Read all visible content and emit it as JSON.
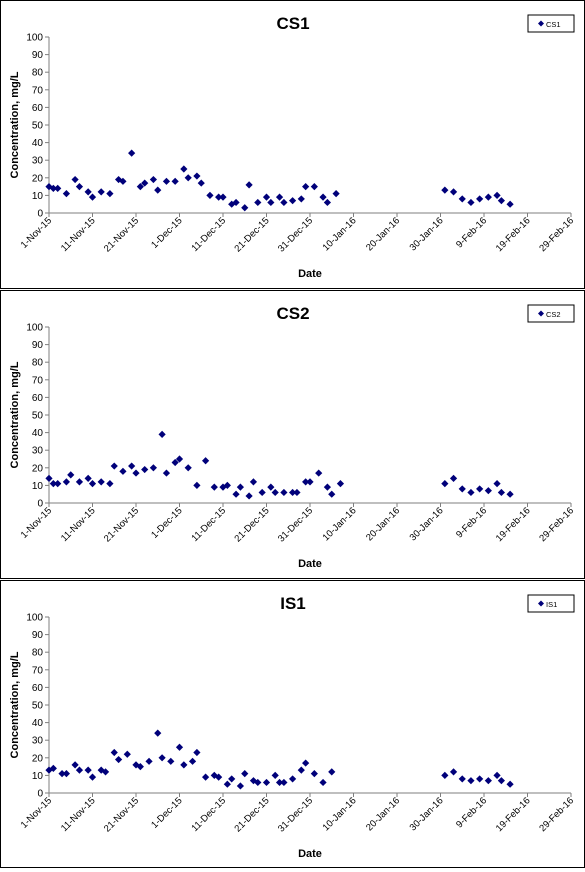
{
  "page": {
    "background": "#ffffff",
    "marker_color": "#00007a",
    "axis_color": "#7f7f7f"
  },
  "chart_data": [
    {
      "type": "scatter",
      "title": "CS1",
      "xlabel": "Date",
      "ylabel": "Concentration, mg/L",
      "ylim": [
        0,
        100
      ],
      "yticks": [
        0,
        10,
        20,
        30,
        40,
        50,
        60,
        70,
        80,
        90,
        100
      ],
      "xlim": [
        "2015-11-01",
        "2016-02-29"
      ],
      "xtick_labels": [
        "1-Nov-15",
        "11-Nov-15",
        "21-Nov-15",
        "1-Dec-15",
        "11-Dec-15",
        "21-Dec-15",
        "31-Dec-15",
        "10-Jan-16",
        "20-Jan-16",
        "30-Jan-16",
        "9-Feb-16",
        "19-Feb-16",
        "29-Feb-16"
      ],
      "grid": false,
      "legend_position": "top-right",
      "series": [
        {
          "name": "CS1",
          "marker": "diamond",
          "color": "#00007a",
          "points": [
            {
              "x": "2015-11-01",
              "y": 15
            },
            {
              "x": "2015-11-02",
              "y": 14
            },
            {
              "x": "2015-11-03",
              "y": 14
            },
            {
              "x": "2015-11-05",
              "y": 11
            },
            {
              "x": "2015-11-07",
              "y": 19
            },
            {
              "x": "2015-11-08",
              "y": 15
            },
            {
              "x": "2015-11-10",
              "y": 12
            },
            {
              "x": "2015-11-11",
              "y": 9
            },
            {
              "x": "2015-11-13",
              "y": 12
            },
            {
              "x": "2015-11-15",
              "y": 11
            },
            {
              "x": "2015-11-17",
              "y": 19
            },
            {
              "x": "2015-11-18",
              "y": 18
            },
            {
              "x": "2015-11-20",
              "y": 34
            },
            {
              "x": "2015-11-22",
              "y": 15
            },
            {
              "x": "2015-11-23",
              "y": 17
            },
            {
              "x": "2015-11-25",
              "y": 19
            },
            {
              "x": "2015-11-26",
              "y": 13
            },
            {
              "x": "2015-11-28",
              "y": 18
            },
            {
              "x": "2015-11-30",
              "y": 18
            },
            {
              "x": "2015-12-02",
              "y": 25
            },
            {
              "x": "2015-12-03",
              "y": 20
            },
            {
              "x": "2015-12-05",
              "y": 21
            },
            {
              "x": "2015-12-06",
              "y": 17
            },
            {
              "x": "2015-12-08",
              "y": 10
            },
            {
              "x": "2015-12-10",
              "y": 9
            },
            {
              "x": "2015-12-11",
              "y": 9
            },
            {
              "x": "2015-12-13",
              "y": 5
            },
            {
              "x": "2015-12-14",
              "y": 6
            },
            {
              "x": "2015-12-16",
              "y": 3
            },
            {
              "x": "2015-12-17",
              "y": 16
            },
            {
              "x": "2015-12-19",
              "y": 6
            },
            {
              "x": "2015-12-21",
              "y": 9
            },
            {
              "x": "2015-12-22",
              "y": 6
            },
            {
              "x": "2015-12-24",
              "y": 9
            },
            {
              "x": "2015-12-25",
              "y": 6
            },
            {
              "x": "2015-12-27",
              "y": 7
            },
            {
              "x": "2015-12-29",
              "y": 8
            },
            {
              "x": "2015-12-30",
              "y": 15
            },
            {
              "x": "2016-01-01",
              "y": 15
            },
            {
              "x": "2016-01-03",
              "y": 9
            },
            {
              "x": "2016-01-04",
              "y": 6
            },
            {
              "x": "2016-01-06",
              "y": 11
            },
            {
              "x": "2016-01-31",
              "y": 13
            },
            {
              "x": "2016-02-02",
              "y": 12
            },
            {
              "x": "2016-02-04",
              "y": 8
            },
            {
              "x": "2016-02-06",
              "y": 6
            },
            {
              "x": "2016-02-08",
              "y": 8
            },
            {
              "x": "2016-02-10",
              "y": 9
            },
            {
              "x": "2016-02-12",
              "y": 10
            },
            {
              "x": "2016-02-13",
              "y": 7
            },
            {
              "x": "2016-02-15",
              "y": 5
            }
          ]
        }
      ]
    },
    {
      "type": "scatter",
      "title": "CS2",
      "xlabel": "Date",
      "ylabel": "Concentration, mg/L",
      "ylim": [
        0,
        100
      ],
      "yticks": [
        0,
        10,
        20,
        30,
        40,
        50,
        60,
        70,
        80,
        90,
        100
      ],
      "xlim": [
        "2015-11-01",
        "2016-02-29"
      ],
      "xtick_labels": [
        "1-Nov-15",
        "11-Nov-15",
        "21-Nov-15",
        "1-Dec-15",
        "11-Dec-15",
        "21-Dec-15",
        "31-Dec-15",
        "10-Jan-16",
        "20-Jan-16",
        "30-Jan-16",
        "9-Feb-16",
        "19-Feb-16",
        "29-Feb-16"
      ],
      "grid": false,
      "legend_position": "top-right",
      "series": [
        {
          "name": "CS2",
          "marker": "diamond",
          "color": "#00007a",
          "points": [
            {
              "x": "2015-11-01",
              "y": 14
            },
            {
              "x": "2015-11-02",
              "y": 11
            },
            {
              "x": "2015-11-03",
              "y": 11
            },
            {
              "x": "2015-11-05",
              "y": 12
            },
            {
              "x": "2015-11-06",
              "y": 16
            },
            {
              "x": "2015-11-08",
              "y": 12
            },
            {
              "x": "2015-11-10",
              "y": 14
            },
            {
              "x": "2015-11-11",
              "y": 11
            },
            {
              "x": "2015-11-13",
              "y": 12
            },
            {
              "x": "2015-11-15",
              "y": 11
            },
            {
              "x": "2015-11-16",
              "y": 21
            },
            {
              "x": "2015-11-18",
              "y": 18
            },
            {
              "x": "2015-11-20",
              "y": 21
            },
            {
              "x": "2015-11-21",
              "y": 17
            },
            {
              "x": "2015-11-23",
              "y": 19
            },
            {
              "x": "2015-11-25",
              "y": 20
            },
            {
              "x": "2015-11-27",
              "y": 39
            },
            {
              "x": "2015-11-28",
              "y": 17
            },
            {
              "x": "2015-11-30",
              "y": 23
            },
            {
              "x": "2015-12-01",
              "y": 25
            },
            {
              "x": "2015-12-03",
              "y": 20
            },
            {
              "x": "2015-12-05",
              "y": 10
            },
            {
              "x": "2015-12-07",
              "y": 24
            },
            {
              "x": "2015-12-09",
              "y": 9
            },
            {
              "x": "2015-12-11",
              "y": 9
            },
            {
              "x": "2015-12-12",
              "y": 10
            },
            {
              "x": "2015-12-14",
              "y": 5
            },
            {
              "x": "2015-12-15",
              "y": 9
            },
            {
              "x": "2015-12-17",
              "y": 4
            },
            {
              "x": "2015-12-18",
              "y": 12
            },
            {
              "x": "2015-12-20",
              "y": 6
            },
            {
              "x": "2015-12-22",
              "y": 9
            },
            {
              "x": "2015-12-23",
              "y": 6
            },
            {
              "x": "2015-12-25",
              "y": 6
            },
            {
              "x": "2015-12-27",
              "y": 6
            },
            {
              "x": "2015-12-28",
              "y": 6
            },
            {
              "x": "2015-12-30",
              "y": 12
            },
            {
              "x": "2015-12-31",
              "y": 12
            },
            {
              "x": "2016-01-02",
              "y": 17
            },
            {
              "x": "2016-01-04",
              "y": 9
            },
            {
              "x": "2016-01-05",
              "y": 5
            },
            {
              "x": "2016-01-07",
              "y": 11
            },
            {
              "x": "2016-01-31",
              "y": 11
            },
            {
              "x": "2016-02-02",
              "y": 14
            },
            {
              "x": "2016-02-04",
              "y": 8
            },
            {
              "x": "2016-02-06",
              "y": 6
            },
            {
              "x": "2016-02-08",
              "y": 8
            },
            {
              "x": "2016-02-10",
              "y": 7
            },
            {
              "x": "2016-02-12",
              "y": 11
            },
            {
              "x": "2016-02-13",
              "y": 6
            },
            {
              "x": "2016-02-15",
              "y": 5
            }
          ]
        }
      ]
    },
    {
      "type": "scatter",
      "title": "IS1",
      "xlabel": "Date",
      "ylabel": "Concentration, mg/L",
      "ylim": [
        0,
        100
      ],
      "yticks": [
        0,
        10,
        20,
        30,
        40,
        50,
        60,
        70,
        80,
        90,
        100
      ],
      "xlim": [
        "2015-11-01",
        "2016-02-29"
      ],
      "xtick_labels": [
        "1-Nov-15",
        "11-Nov-15",
        "21-Nov-15",
        "1-Dec-15",
        "11-Dec-15",
        "21-Dec-15",
        "31-Dec-15",
        "10-Jan-16",
        "20-Jan-16",
        "30-Jan-16",
        "9-Feb-16",
        "19-Feb-16",
        "29-Feb-16"
      ],
      "grid": false,
      "legend_position": "top-right",
      "series": [
        {
          "name": "IS1",
          "marker": "diamond",
          "color": "#00007a",
          "points": [
            {
              "x": "2015-11-01",
              "y": 13
            },
            {
              "x": "2015-11-02",
              "y": 14
            },
            {
              "x": "2015-11-04",
              "y": 11
            },
            {
              "x": "2015-11-05",
              "y": 11
            },
            {
              "x": "2015-11-07",
              "y": 16
            },
            {
              "x": "2015-11-08",
              "y": 13
            },
            {
              "x": "2015-11-10",
              "y": 13
            },
            {
              "x": "2015-11-11",
              "y": 9
            },
            {
              "x": "2015-11-13",
              "y": 13
            },
            {
              "x": "2015-11-14",
              "y": 12
            },
            {
              "x": "2015-11-16",
              "y": 23
            },
            {
              "x": "2015-11-17",
              "y": 19
            },
            {
              "x": "2015-11-19",
              "y": 22
            },
            {
              "x": "2015-11-21",
              "y": 16
            },
            {
              "x": "2015-11-22",
              "y": 15
            },
            {
              "x": "2015-11-24",
              "y": 18
            },
            {
              "x": "2015-11-26",
              "y": 34
            },
            {
              "x": "2015-11-27",
              "y": 20
            },
            {
              "x": "2015-11-29",
              "y": 18
            },
            {
              "x": "2015-12-01",
              "y": 26
            },
            {
              "x": "2015-12-02",
              "y": 16
            },
            {
              "x": "2015-12-04",
              "y": 18
            },
            {
              "x": "2015-12-05",
              "y": 23
            },
            {
              "x": "2015-12-07",
              "y": 9
            },
            {
              "x": "2015-12-09",
              "y": 10
            },
            {
              "x": "2015-12-10",
              "y": 9
            },
            {
              "x": "2015-12-12",
              "y": 5
            },
            {
              "x": "2015-12-13",
              "y": 8
            },
            {
              "x": "2015-12-15",
              "y": 4
            },
            {
              "x": "2015-12-16",
              "y": 11
            },
            {
              "x": "2015-12-18",
              "y": 7
            },
            {
              "x": "2015-12-19",
              "y": 6
            },
            {
              "x": "2015-12-21",
              "y": 6
            },
            {
              "x": "2015-12-23",
              "y": 10
            },
            {
              "x": "2015-12-24",
              "y": 6
            },
            {
              "x": "2015-12-25",
              "y": 6
            },
            {
              "x": "2015-12-27",
              "y": 8
            },
            {
              "x": "2015-12-29",
              "y": 13
            },
            {
              "x": "2015-12-30",
              "y": 17
            },
            {
              "x": "2016-01-01",
              "y": 11
            },
            {
              "x": "2016-01-03",
              "y": 6
            },
            {
              "x": "2016-01-05",
              "y": 12
            },
            {
              "x": "2016-01-31",
              "y": 10
            },
            {
              "x": "2016-02-02",
              "y": 12
            },
            {
              "x": "2016-02-04",
              "y": 8
            },
            {
              "x": "2016-02-06",
              "y": 7
            },
            {
              "x": "2016-02-08",
              "y": 8
            },
            {
              "x": "2016-02-10",
              "y": 7
            },
            {
              "x": "2016-02-12",
              "y": 10
            },
            {
              "x": "2016-02-13",
              "y": 7
            },
            {
              "x": "2016-02-15",
              "y": 5
            }
          ]
        }
      ]
    }
  ]
}
